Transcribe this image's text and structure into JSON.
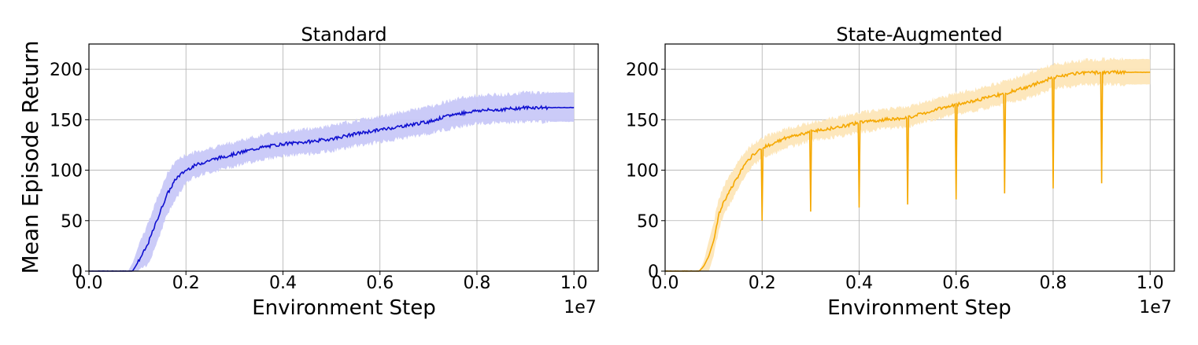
{
  "chart_data": [
    {
      "type": "line",
      "title": "Standard",
      "xlabel": "Environment Step",
      "ylabel": "Mean Episode Return",
      "x_offset_label": "1e7",
      "xlim": [
        0.0,
        1.05
      ],
      "ylim": [
        0,
        225
      ],
      "x_ticks": [
        0.0,
        0.2,
        0.4,
        0.6,
        0.8,
        1.0
      ],
      "x_tick_labels": [
        "0.0",
        "0.2",
        "0.4",
        "0.6",
        "0.8",
        "1.0"
      ],
      "y_ticks": [
        0,
        50,
        100,
        150,
        200
      ],
      "y_tick_labels": [
        "0",
        "50",
        "100",
        "150",
        "200"
      ],
      "grid": true,
      "colors": {
        "line": "#1010d0",
        "band": "#c8c8f8"
      },
      "series": [
        {
          "x": [
            0.0,
            0.08,
            0.09,
            0.1,
            0.12,
            0.14,
            0.16,
            0.18,
            0.2,
            0.22,
            0.25,
            0.3,
            0.35,
            0.4,
            0.45,
            0.5,
            0.55,
            0.6,
            0.65,
            0.7,
            0.75,
            0.8,
            0.85,
            0.9,
            0.95,
            1.0
          ],
          "y": [
            0,
            0,
            0,
            8,
            25,
            50,
            75,
            92,
            100,
            105,
            110,
            116,
            122,
            126,
            128,
            131,
            136,
            140,
            144,
            148,
            155,
            159,
            160,
            162,
            162,
            162
          ],
          "y_low": [
            0,
            0,
            0,
            0,
            5,
            28,
            55,
            72,
            88,
            94,
            98,
            104,
            110,
            114,
            116,
            119,
            124,
            128,
            132,
            136,
            142,
            146,
            147,
            148,
            148,
            148
          ],
          "y_high": [
            0,
            0,
            8,
            22,
            45,
            72,
            95,
            110,
            115,
            118,
            122,
            128,
            134,
            138,
            141,
            144,
            149,
            153,
            158,
            163,
            170,
            174,
            175,
            177,
            177,
            177
          ]
        }
      ]
    },
    {
      "type": "line",
      "title": "State-Augmented",
      "xlabel": "Environment Step",
      "ylabel": "",
      "x_offset_label": "1e7",
      "xlim": [
        0.0,
        1.05
      ],
      "ylim": [
        0,
        225
      ],
      "x_ticks": [
        0.0,
        0.2,
        0.4,
        0.6,
        0.8,
        1.0
      ],
      "x_tick_labels": [
        "0.0",
        "0.2",
        "0.4",
        "0.6",
        "0.8",
        "1.0"
      ],
      "y_ticks": [
        0,
        50,
        100,
        150,
        200
      ],
      "y_tick_labels": [
        "0",
        "50",
        "100",
        "150",
        "200"
      ],
      "grid": true,
      "colors": {
        "line": "#f5a800",
        "band": "#fde6b8"
      },
      "series": [
        {
          "x": [
            0.0,
            0.07,
            0.08,
            0.09,
            0.1,
            0.11,
            0.12,
            0.14,
            0.16,
            0.18,
            0.2,
            0.25,
            0.3,
            0.35,
            0.4,
            0.45,
            0.5,
            0.55,
            0.6,
            0.65,
            0.7,
            0.75,
            0.8,
            0.85,
            0.9,
            0.95,
            1.0
          ],
          "y": [
            0,
            0,
            5,
            15,
            30,
            55,
            68,
            85,
            102,
            115,
            122,
            132,
            138,
            142,
            147,
            150,
            152,
            159,
            165,
            170,
            176,
            183,
            192,
            196,
            197,
            197,
            197
          ],
          "y_low": [
            0,
            0,
            0,
            0,
            15,
            40,
            55,
            73,
            90,
            104,
            112,
            122,
            129,
            133,
            138,
            141,
            143,
            150,
            155,
            160,
            166,
            172,
            181,
            184,
            185,
            185,
            185
          ],
          "y_high": [
            0,
            0,
            10,
            30,
            48,
            70,
            84,
            100,
            115,
            126,
            132,
            141,
            147,
            152,
            157,
            160,
            163,
            170,
            176,
            181,
            188,
            196,
            205,
            208,
            210,
            210,
            210
          ],
          "dips": [
            {
              "x": 0.2,
              "y": 50
            },
            {
              "x": 0.3,
              "y": 59
            },
            {
              "x": 0.4,
              "y": 63
            },
            {
              "x": 0.5,
              "y": 66
            },
            {
              "x": 0.6,
              "y": 71
            },
            {
              "x": 0.7,
              "y": 77
            },
            {
              "x": 0.8,
              "y": 82
            },
            {
              "x": 0.9,
              "y": 87
            }
          ]
        }
      ]
    }
  ]
}
